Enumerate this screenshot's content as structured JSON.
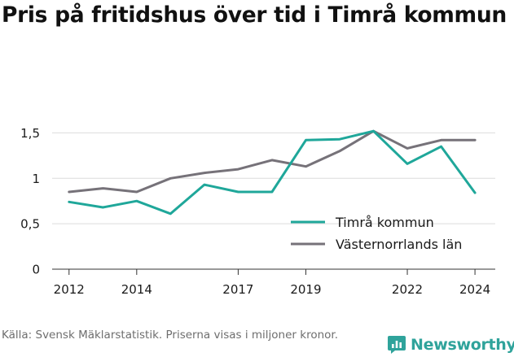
{
  "chart_data": {
    "type": "line",
    "title": "Pris på fritidshus över tid i Timrå kommun",
    "xlabel": "",
    "ylabel": "",
    "x": [
      2012,
      2013,
      2014,
      2015,
      2016,
      2017,
      2018,
      2019,
      2020,
      2021,
      2022,
      2023,
      2024
    ],
    "x_ticks": [
      2012,
      2014,
      2017,
      2019,
      2022,
      2024
    ],
    "x_tick_labels": [
      "2012",
      "2014",
      "2017",
      "2019",
      "2022",
      "2024"
    ],
    "xlim": [
      2011.5,
      2024.6
    ],
    "y_ticks": [
      0,
      0.5,
      1,
      1.5
    ],
    "y_tick_labels": [
      "0",
      "0,5",
      "1",
      "1,5"
    ],
    "ylim": [
      0,
      1.62
    ],
    "grid": "horizontal",
    "legend_position": "bottom-right",
    "series": [
      {
        "name": "Timrå kommun",
        "color": "#1fa79a",
        "values": [
          0.74,
          0.68,
          0.75,
          0.61,
          0.93,
          0.85,
          0.85,
          1.42,
          1.43,
          1.52,
          1.16,
          1.35,
          0.84
        ]
      },
      {
        "name": "Västernorrlands län",
        "color": "#767279",
        "values": [
          0.85,
          0.89,
          0.85,
          1.0,
          1.06,
          1.1,
          1.2,
          1.13,
          1.3,
          1.52,
          1.33,
          1.42,
          1.42
        ]
      }
    ]
  },
  "footer": {
    "source": "Källa: Svensk Mäklarstatistik. Priserna visas i miljoner kronor.",
    "brand": "Newsworthy",
    "brand_color": "#2fa39b"
  }
}
